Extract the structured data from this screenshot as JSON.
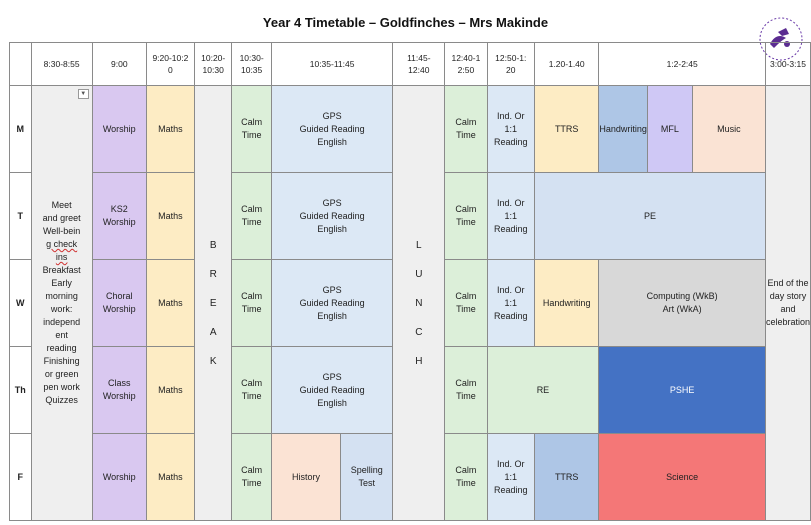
{
  "title": "Year 4 Timetable – Goldfinches – Mrs Makinde",
  "logo_icon": "school-logo-icon",
  "headers": [
    "8:30-8:55",
    "9:00",
    "9:20-10:2\n0",
    "10:20-\n10:30",
    "10:30-\n10:35",
    "10:35-11:45",
    "11:45-\n12:40",
    "12:40-1\n2:50",
    "12:50-1:\n20",
    "1.20-1.40",
    "1:2-2:45",
    "3:00-3:15"
  ],
  "days": [
    "M",
    "T",
    "W",
    "Th",
    "F"
  ],
  "morning_lines": [
    "Meet",
    "and greet",
    "Well-bein",
    "g check",
    "ins",
    "Breakfast",
    "Early",
    "morning",
    "work:",
    "independ",
    "ent",
    "reading",
    "Finishing",
    "or green",
    "pen work",
    "Quizzes"
  ],
  "break_letters": [
    "B",
    "R",
    "E",
    "A",
    "K"
  ],
  "lunch_letters": [
    "L",
    "U",
    "N",
    "C",
    "H"
  ],
  "end_of_day": "End of the\nday story\nand\ncelebration",
  "calm": "Calm\nTime",
  "gps": "GPS\nGuided Reading\nEnglish",
  "ind": "Ind. Or\n1:1\nReading",
  "rows": {
    "m": {
      "c9": "Worship",
      "c920": "Maths",
      "c120": "TTRS",
      "hw": "Handwriting",
      "mfl": "MFL",
      "music": "Music"
    },
    "t": {
      "c9": "KS2\nWorship",
      "c920": "Maths",
      "pe": "PE"
    },
    "w": {
      "c9": "Choral\nWorship",
      "c920": "Maths",
      "c120": "Handwriting",
      "comp": "Computing (WkB)\nArt (WkA)"
    },
    "th": {
      "c9": "Class\nWorship",
      "c920": "Maths",
      "re": "RE",
      "pshe": "PSHE"
    },
    "f": {
      "c9": "Worship",
      "c920": "Maths",
      "history": "History",
      "spelling": "Spelling\nTest",
      "c120": "TTRS",
      "science": "Science"
    }
  }
}
